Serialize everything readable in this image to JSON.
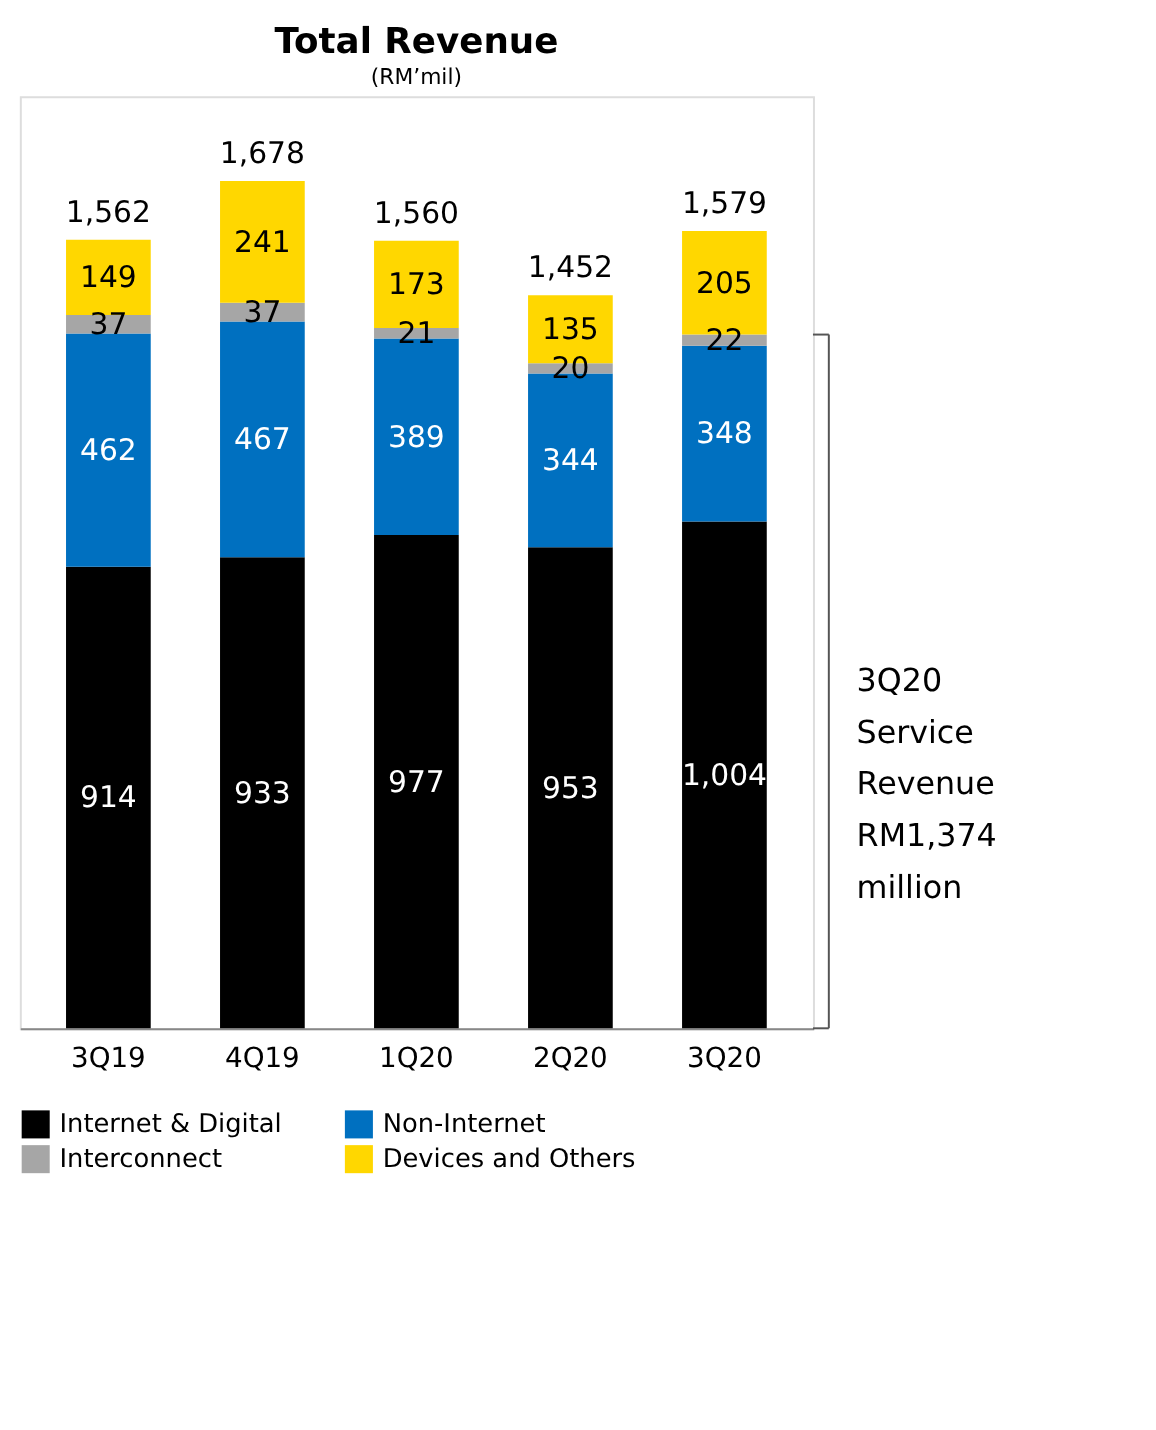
{
  "chart_data": {
    "type": "bar",
    "title": "Total Revenue",
    "subtitle": "(RM’mil)",
    "stacked": true,
    "legend": "bottom",
    "categories": [
      "3Q19",
      "4Q19",
      "1Q20",
      "2Q20",
      "3Q20"
    ],
    "series": [
      {
        "name": "Internet & Digital",
        "color": "#000000",
        "values": [
          914,
          933,
          977,
          953,
          1004
        ],
        "value_labels": [
          "914",
          "933",
          "977",
          "953",
          "1,004"
        ]
      },
      {
        "name": "Non-Internet",
        "color": "#0070c0",
        "values": [
          462,
          467,
          389,
          344,
          348
        ],
        "value_labels": [
          "462",
          "467",
          "389",
          "344",
          "348"
        ]
      },
      {
        "name": "Interconnect",
        "color": "#a6a6a6",
        "values": [
          37,
          37,
          21,
          20,
          22
        ],
        "value_labels": [
          "37",
          "37",
          "21",
          "20",
          "22"
        ]
      },
      {
        "name": "Devices and Others",
        "color": "#ffd700",
        "values": [
          149,
          241,
          173,
          135,
          205
        ],
        "value_labels": [
          "149",
          "241",
          "173",
          "135",
          "205"
        ]
      }
    ],
    "totals": [
      "1,562",
      "1,678",
      "1,560",
      "1,452",
      "1,579"
    ],
    "annotations": [
      "3Q20 Service Revenue RM1,374 million"
    ]
  }
}
